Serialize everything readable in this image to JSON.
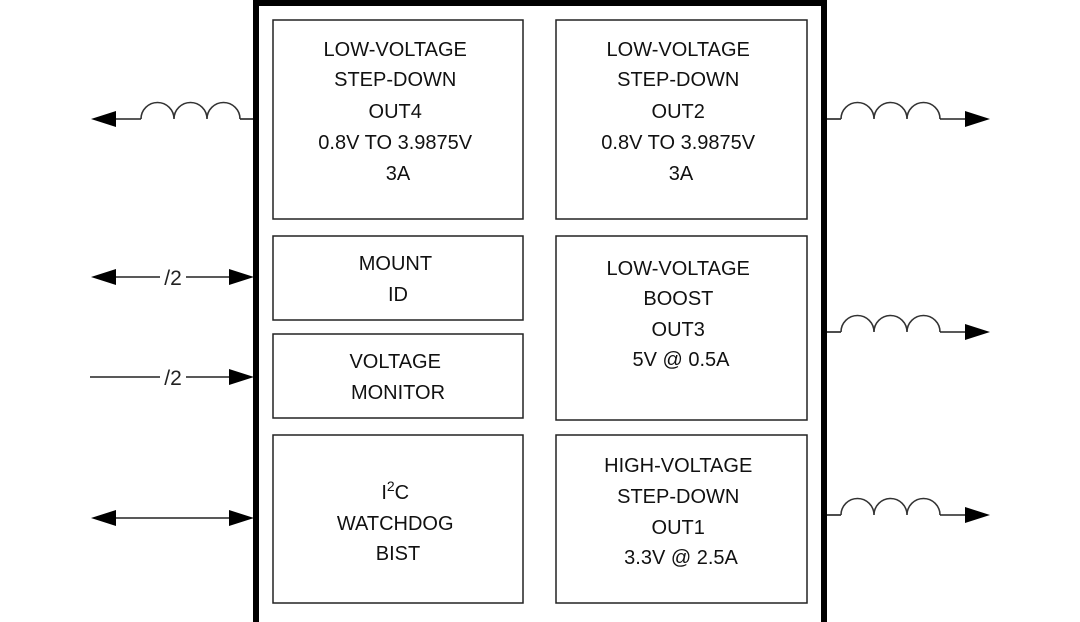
{
  "blocks": {
    "out4": {
      "lines": [
        "LOW-VOLTAGE",
        "STEP-DOWN",
        "OUT4",
        "0.8V TO 3.9875V",
        "3A"
      ]
    },
    "out2": {
      "lines": [
        "LOW-VOLTAGE",
        "STEP-DOWN",
        "OUT2",
        "0.8V TO 3.9875V",
        "3A"
      ]
    },
    "mount": {
      "lines": [
        "MOUNT",
        "ID"
      ]
    },
    "vmon": {
      "lines": [
        "VOLTAGE",
        "MONITOR"
      ]
    },
    "out3": {
      "lines": [
        "LOW-VOLTAGE",
        "BOOST",
        "OUT3",
        "5V @ 0.5A"
      ]
    },
    "i2c": {
      "line1_base": "I",
      "line1_sup": "2",
      "line1_end": "C",
      "lines": [
        "WATCHDOG",
        "BIST"
      ]
    },
    "out1": {
      "lines": [
        "HIGH-VOLTAGE",
        "STEP-DOWN",
        "OUT1",
        "3.3V @ 2.5A"
      ]
    }
  },
  "signals": {
    "mount_bus_label": "/2",
    "vmon_bus_label": "/2"
  },
  "icons": {
    "inductor": "inductor-coil-icon",
    "arrow": "arrowhead-icon"
  }
}
